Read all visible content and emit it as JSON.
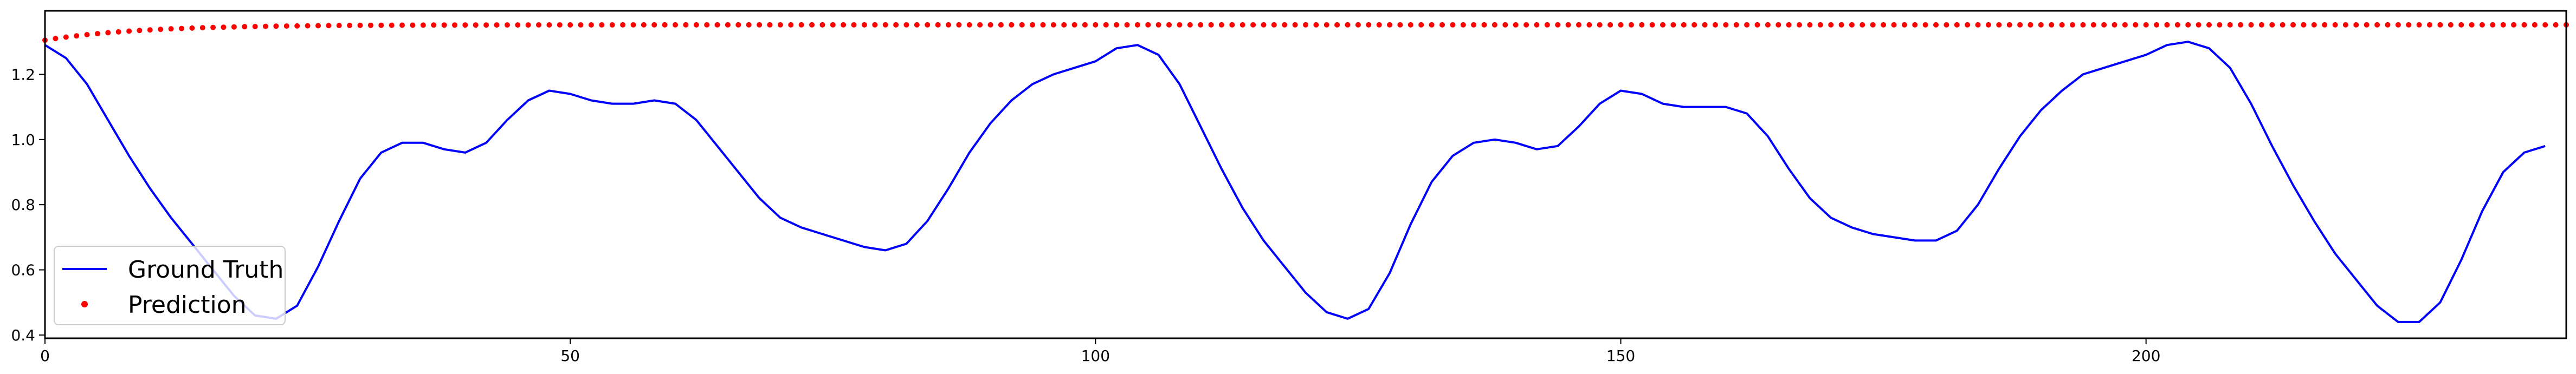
{
  "chart_data": {
    "type": "line",
    "title": "",
    "xlabel": "",
    "ylabel": "",
    "xlim": [
      0,
      240
    ],
    "ylim": [
      0.39,
      1.395
    ],
    "xticks": [
      0,
      50,
      100,
      150,
      200
    ],
    "yticks": [
      0.4,
      0.6,
      0.8,
      1.0,
      1.2
    ],
    "ytick_labels": [
      "0.4",
      "0.6",
      "0.8",
      "1.0",
      "1.2"
    ],
    "grid": false,
    "legend": {
      "placement": "lower-left",
      "entries": [
        "Ground Truth",
        "Prediction"
      ]
    },
    "series": [
      {
        "name": "Ground Truth",
        "style": "line",
        "color": "#0000ff",
        "x": [
          0,
          2,
          4,
          6,
          8,
          10,
          12,
          14,
          16,
          18,
          20,
          22,
          24,
          26,
          28,
          30,
          32,
          34,
          36,
          38,
          40,
          42,
          44,
          46,
          48,
          50,
          52,
          54,
          56,
          58,
          60,
          62,
          64,
          66,
          68,
          70,
          72,
          74,
          76,
          78,
          80,
          82,
          84,
          86,
          88,
          90,
          92,
          94,
          96,
          98,
          100,
          102,
          104,
          106,
          108,
          110,
          112,
          114,
          116,
          118,
          120,
          122,
          124,
          126,
          128,
          130,
          132,
          134,
          136,
          138,
          140,
          142,
          144,
          146,
          148,
          150,
          152,
          154,
          156,
          158,
          160,
          162,
          164,
          166,
          168,
          170,
          172,
          174,
          176,
          178,
          180,
          182,
          184,
          186,
          188,
          190,
          192,
          194,
          196,
          198,
          200,
          202,
          204,
          206,
          208,
          210,
          212,
          214,
          216,
          218,
          220,
          222,
          224,
          226,
          228,
          230,
          232,
          234,
          236,
          238
        ],
        "y": [
          1.29,
          1.25,
          1.17,
          1.06,
          0.95,
          0.85,
          0.76,
          0.68,
          0.6,
          0.52,
          0.46,
          0.45,
          0.49,
          0.61,
          0.75,
          0.88,
          0.96,
          0.99,
          0.99,
          0.97,
          0.96,
          0.99,
          1.06,
          1.12,
          1.15,
          1.14,
          1.12,
          1.11,
          1.11,
          1.12,
          1.11,
          1.06,
          0.98,
          0.9,
          0.82,
          0.76,
          0.73,
          0.71,
          0.69,
          0.67,
          0.66,
          0.68,
          0.75,
          0.85,
          0.96,
          1.05,
          1.12,
          1.17,
          1.2,
          1.22,
          1.24,
          1.28,
          1.29,
          1.26,
          1.17,
          1.04,
          0.91,
          0.79,
          0.69,
          0.61,
          0.53,
          0.47,
          0.45,
          0.48,
          0.59,
          0.74,
          0.87,
          0.95,
          0.99,
          1.0,
          0.99,
          0.97,
          0.98,
          1.04,
          1.11,
          1.15,
          1.14,
          1.11,
          1.1,
          1.1,
          1.1,
          1.08,
          1.01,
          0.91,
          0.82,
          0.76,
          0.73,
          0.71,
          0.7,
          0.69,
          0.69,
          0.72,
          0.8,
          0.91,
          1.01,
          1.09,
          1.15,
          1.2,
          1.22,
          1.24,
          1.26,
          1.29,
          1.3,
          1.28,
          1.22,
          1.11,
          0.98,
          0.86,
          0.75,
          0.65,
          0.57,
          0.49,
          0.44,
          0.44,
          0.5,
          0.63,
          0.78,
          0.9,
          0.96,
          0.98
        ]
      },
      {
        "name": "Prediction",
        "style": "dots",
        "color": "#ff0000",
        "start": 1.305,
        "end": 1.352,
        "x_range": [
          0,
          240
        ],
        "x_step": 1
      }
    ]
  }
}
